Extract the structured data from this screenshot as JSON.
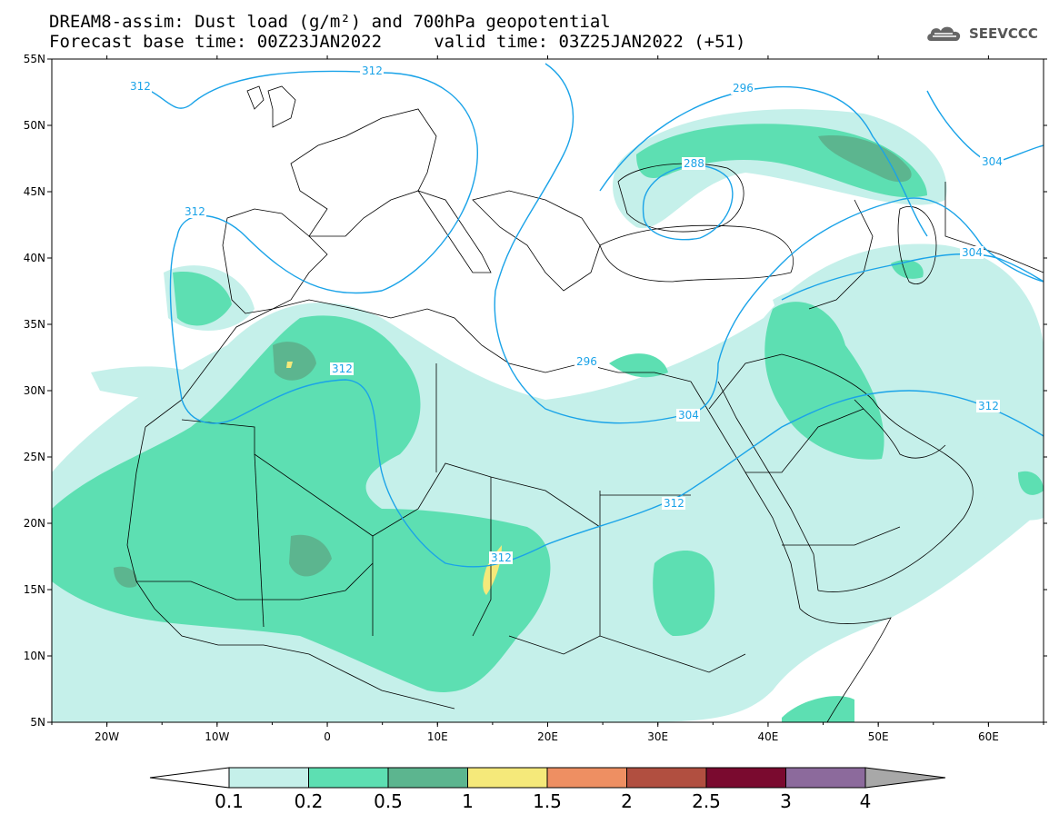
{
  "header": {
    "line1": "DREAM8-assim: Dust load (g/m²) and 700hPa geopotential",
    "line2": "Forecast base time: 00Z23JAN2022     valid time: 03Z25JAN2022 (+51)",
    "logo_text": "SEEVCCC"
  },
  "map": {
    "lon_range": [
      -25,
      65
    ],
    "lat_range": [
      5,
      55
    ],
    "lon_ticks": [
      "20W",
      "10W",
      "0",
      "10E",
      "20E",
      "30E",
      "40E",
      "50E",
      "60E"
    ],
    "lat_ticks": [
      "55N",
      "50N",
      "45N",
      "40N",
      "35N",
      "30N",
      "25N",
      "20N",
      "15N",
      "10N",
      "5N"
    ],
    "contour_labels": [
      "312",
      "312",
      "296",
      "288",
      "304",
      "312",
      "304",
      "296",
      "304",
      "312",
      "312",
      "312"
    ]
  },
  "colorbar": {
    "levels": [
      "0.1",
      "0.2",
      "0.5",
      "1",
      "1.5",
      "2",
      "2.5",
      "3",
      "4"
    ],
    "colors": [
      "#c5f0ea",
      "#5ddfb2",
      "#5cb58f",
      "#f5e97a",
      "#ee8f62",
      "#b14f40",
      "#7a0a2f",
      "#8c6a9c",
      "#a8a8a8"
    ]
  },
  "colors": {
    "contour": "#1aa3e8",
    "border": "#000000"
  }
}
